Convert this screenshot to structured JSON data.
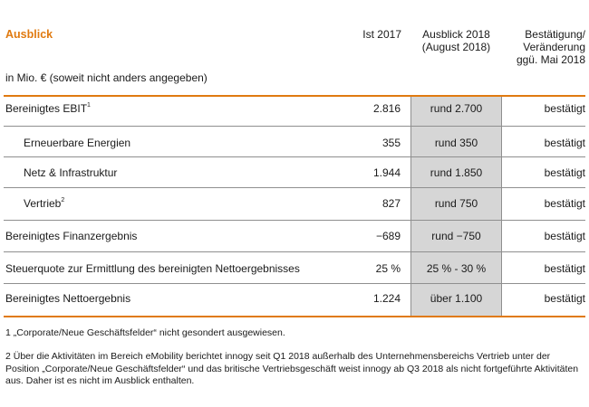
{
  "header": {
    "title": "Ausblick",
    "unit": "in Mio. € (soweit nicht anders angegeben)",
    "col_ist": "Ist 2017",
    "col_outlook_line1": "Ausblick 2018",
    "col_outlook_line2": "(August 2018)",
    "col_confirm_line1": "Bestätigung/",
    "col_confirm_line2": "Veränderung",
    "col_confirm_line3": "ggü. Mai 2018"
  },
  "rows": [
    {
      "label": "Bereinigtes EBIT",
      "sup": "1",
      "ist": "2.816",
      "outlook": "rund 2.700",
      "status": "bestätigt"
    },
    {
      "label": "Erneuerbare Energien",
      "sup": "",
      "ist": "355",
      "outlook": "rund 350",
      "status": "bestätigt"
    },
    {
      "label": "Netz & Infrastruktur",
      "sup": "",
      "ist": "1.944",
      "outlook": "rund 1.850",
      "status": "bestätigt"
    },
    {
      "label": "Vertrieb",
      "sup": "2",
      "ist": "827",
      "outlook": "rund 750",
      "status": "bestätigt"
    },
    {
      "label": "Bereinigtes Finanzergebnis",
      "sup": "",
      "ist": "−689",
      "outlook": "rund −750",
      "status": "bestätigt"
    },
    {
      "label": "Steuerquote zur Ermittlung des bereinigten Nettoergebnisses",
      "sup": "",
      "ist": "25 %",
      "outlook": "25 % - 30 %",
      "status": "bestätigt"
    },
    {
      "label": "Bereinigtes Nettoergebnis",
      "sup": "",
      "ist": "1.224",
      "outlook": "über 1.100",
      "status": "bestätigt"
    }
  ],
  "footnotes": [
    "1 „Corporate/Neue Geschäftsfelder“ nicht gesondert ausgewiesen.",
    "2 Über die Aktivitäten im Bereich eMobility berichtet innogy seit Q1 2018 außerhalb des Unternehmensbereichs Vertrieb unter der Position „Corporate/Neue Geschäftsfelder“ und das britische Vertriebsgeschäft weist innogy ab Q3 2018 als nicht fortgeführte Aktivitäten aus. Daher ist es nicht im Ausblick enthalten."
  ]
}
